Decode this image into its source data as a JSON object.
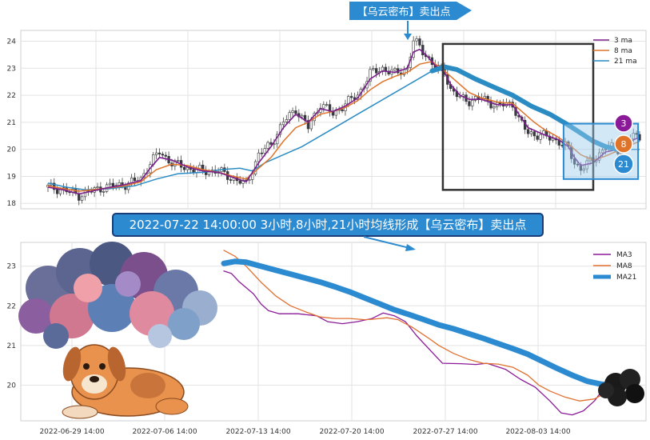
{
  "chart_data": [
    {
      "type": "candlestick",
      "title": "",
      "ylim": [
        17.8,
        24.4
      ],
      "yticks": [
        18,
        19,
        20,
        21,
        22,
        23,
        24
      ],
      "grid": true,
      "legend_position": "top-right",
      "legend": [
        {
          "name": "3 ma",
          "color": "#7b1f8c"
        },
        {
          "name": "8 ma",
          "color": "#e0732a"
        },
        {
          "name": "21 ma",
          "color": "#2b8cc4"
        }
      ],
      "close_path": [
        [
          0,
          18.6
        ],
        [
          5,
          18.5
        ],
        [
          10,
          18.3
        ],
        [
          18,
          18.6
        ],
        [
          25,
          18.7
        ],
        [
          30,
          18.9
        ],
        [
          33,
          19.5
        ],
        [
          36,
          19.9
        ],
        [
          40,
          19.5
        ],
        [
          45,
          19.3
        ],
        [
          50,
          19.2
        ],
        [
          55,
          19.2
        ],
        [
          60,
          18.9
        ],
        [
          64,
          18.7
        ],
        [
          68,
          19.8
        ],
        [
          72,
          20.2
        ],
        [
          76,
          21.0
        ],
        [
          80,
          21.5
        ],
        [
          84,
          20.8
        ],
        [
          88,
          21.7
        ],
        [
          92,
          21.3
        ],
        [
          96,
          21.7
        ],
        [
          100,
          22.0
        ],
        [
          104,
          22.8
        ],
        [
          108,
          23.0
        ],
        [
          112,
          22.8
        ],
        [
          116,
          23.0
        ],
        [
          118,
          24.0
        ],
        [
          120,
          23.8
        ],
        [
          122,
          23.5
        ],
        [
          125,
          23.0
        ],
        [
          128,
          22.9
        ],
        [
          130,
          22.2
        ],
        [
          133,
          21.9
        ],
        [
          136,
          21.8
        ],
        [
          140,
          21.9
        ],
        [
          145,
          21.6
        ],
        [
          150,
          21.7
        ],
        [
          152,
          21.1
        ],
        [
          155,
          20.6
        ],
        [
          160,
          20.5
        ],
        [
          165,
          20.3
        ],
        [
          168,
          20.0
        ],
        [
          170,
          19.5
        ],
        [
          172,
          19.3
        ],
        [
          176,
          19.6
        ],
        [
          180,
          20.1
        ],
        [
          184,
          20.0
        ],
        [
          188,
          20.4
        ],
        [
          191,
          20.5
        ]
      ],
      "ma3_path": [
        [
          0,
          18.6
        ],
        [
          5,
          18.5
        ],
        [
          10,
          18.35
        ],
        [
          18,
          18.55
        ],
        [
          25,
          18.7
        ],
        [
          30,
          18.85
        ],
        [
          33,
          19.3
        ],
        [
          36,
          19.7
        ],
        [
          40,
          19.6
        ],
        [
          45,
          19.35
        ],
        [
          50,
          19.2
        ],
        [
          55,
          19.15
        ],
        [
          60,
          18.95
        ],
        [
          64,
          18.8
        ],
        [
          68,
          19.5
        ],
        [
          72,
          20.1
        ],
        [
          76,
          20.8
        ],
        [
          80,
          21.3
        ],
        [
          84,
          21.0
        ],
        [
          88,
          21.5
        ],
        [
          92,
          21.4
        ],
        [
          96,
          21.6
        ],
        [
          100,
          21.9
        ],
        [
          104,
          22.6
        ],
        [
          108,
          22.9
        ],
        [
          112,
          22.85
        ],
        [
          116,
          23.0
        ],
        [
          118,
          23.6
        ],
        [
          120,
          23.7
        ],
        [
          122,
          23.5
        ],
        [
          125,
          23.1
        ],
        [
          128,
          22.85
        ],
        [
          130,
          22.4
        ],
        [
          133,
          22.0
        ],
        [
          136,
          21.85
        ],
        [
          140,
          21.85
        ],
        [
          145,
          21.65
        ],
        [
          150,
          21.65
        ],
        [
          152,
          21.3
        ],
        [
          155,
          20.8
        ],
        [
          160,
          20.55
        ],
        [
          165,
          20.35
        ],
        [
          168,
          20.1
        ],
        [
          170,
          19.7
        ],
        [
          172,
          19.4
        ],
        [
          176,
          19.5
        ],
        [
          180,
          19.9
        ],
        [
          184,
          20.0
        ],
        [
          188,
          20.3
        ],
        [
          191,
          20.45
        ]
      ],
      "ma8_path": [
        [
          0,
          18.65
        ],
        [
          5,
          18.55
        ],
        [
          10,
          18.45
        ],
        [
          18,
          18.55
        ],
        [
          25,
          18.65
        ],
        [
          30,
          18.8
        ],
        [
          35,
          19.25
        ],
        [
          40,
          19.45
        ],
        [
          45,
          19.4
        ],
        [
          50,
          19.25
        ],
        [
          55,
          19.15
        ],
        [
          60,
          19.0
        ],
        [
          64,
          18.9
        ],
        [
          68,
          19.3
        ],
        [
          72,
          19.7
        ],
        [
          76,
          20.3
        ],
        [
          80,
          20.8
        ],
        [
          84,
          21.0
        ],
        [
          88,
          21.3
        ],
        [
          92,
          21.4
        ],
        [
          96,
          21.55
        ],
        [
          100,
          21.8
        ],
        [
          104,
          22.2
        ],
        [
          108,
          22.5
        ],
        [
          112,
          22.7
        ],
        [
          116,
          22.85
        ],
        [
          120,
          23.15
        ],
        [
          124,
          23.25
        ],
        [
          128,
          22.9
        ],
        [
          132,
          22.5
        ],
        [
          136,
          22.1
        ],
        [
          140,
          21.9
        ],
        [
          145,
          21.75
        ],
        [
          150,
          21.7
        ],
        [
          153,
          21.4
        ],
        [
          157,
          21.0
        ],
        [
          160,
          20.75
        ],
        [
          164,
          20.5
        ],
        [
          168,
          20.2
        ],
        [
          172,
          19.8
        ],
        [
          176,
          19.6
        ],
        [
          180,
          19.75
        ],
        [
          184,
          19.95
        ],
        [
          188,
          20.15
        ],
        [
          191,
          20.3
        ]
      ],
      "ma21_path": [
        [
          0,
          18.75
        ],
        [
          6,
          18.6
        ],
        [
          12,
          18.5
        ],
        [
          20,
          18.55
        ],
        [
          28,
          18.65
        ],
        [
          35,
          18.9
        ],
        [
          42,
          19.1
        ],
        [
          50,
          19.15
        ],
        [
          56,
          19.25
        ],
        [
          62,
          19.3
        ],
        [
          66,
          19.2
        ],
        [
          70,
          19.5
        ],
        [
          76,
          19.8
        ],
        [
          82,
          20.1
        ],
        [
          88,
          20.5
        ],
        [
          94,
          20.9
        ],
        [
          100,
          21.3
        ],
        [
          106,
          21.7
        ],
        [
          112,
          22.1
        ],
        [
          118,
          22.5
        ],
        [
          124,
          22.9
        ],
        [
          128,
          23.05
        ],
        [
          132,
          22.95
        ],
        [
          138,
          22.6
        ],
        [
          144,
          22.3
        ],
        [
          150,
          22.0
        ],
        [
          156,
          21.6
        ],
        [
          162,
          21.3
        ],
        [
          168,
          20.9
        ],
        [
          172,
          20.6
        ],
        [
          176,
          20.3
        ],
        [
          180,
          20.1
        ],
        [
          184,
          20.0
        ],
        [
          188,
          20.0
        ],
        [
          191,
          20.0
        ]
      ],
      "sell_box": {
        "x": [
          128,
          191
        ],
        "y": [
          18.5,
          23.9
        ]
      },
      "sell_zoom_box": {
        "x": [
          168,
          190
        ],
        "y": [
          18.9,
          20.95
        ]
      },
      "callout_top": "【乌云密布】卖出点",
      "ma_badges": [
        "3",
        "8",
        "21"
      ]
    },
    {
      "type": "line",
      "title": "",
      "ylim": [
        19.1,
        23.6
      ],
      "yticks": [
        20,
        21,
        22,
        23
      ],
      "x_ticks": [
        "2022-06-29 14:00",
        "2022-07-06 14:00",
        "2022-07-13 14:00",
        "2022-07-20 14:00",
        "2022-07-27 14:00",
        "2022-08-03 14:00"
      ],
      "legend_position": "top-right",
      "grid": true,
      "callout": "2022-07-22 14:00:00 3小时,8小时,21小时均线形成【乌云密布】卖出点",
      "series": [
        {
          "name": "MA3",
          "color": "#8b1a99",
          "points": [
            [
              0,
              22.88
            ],
            [
              2,
              22.82
            ],
            [
              4,
              22.62
            ],
            [
              8,
              22.3
            ],
            [
              10,
              22.05
            ],
            [
              12,
              21.88
            ],
            [
              15,
              21.8
            ],
            [
              20,
              21.8
            ],
            [
              25,
              21.75
            ],
            [
              28,
              21.6
            ],
            [
              32,
              21.55
            ],
            [
              36,
              21.6
            ],
            [
              40,
              21.68
            ],
            [
              43,
              21.82
            ],
            [
              46,
              21.75
            ],
            [
              49,
              21.6
            ],
            [
              52,
              21.25
            ],
            [
              56,
              20.85
            ],
            [
              59,
              20.55
            ],
            [
              64,
              20.54
            ],
            [
              68,
              20.52
            ],
            [
              71,
              20.55
            ],
            [
              76,
              20.4
            ],
            [
              80,
              20.15
            ],
            [
              84,
              19.95
            ],
            [
              88,
              19.6
            ],
            [
              91,
              19.3
            ],
            [
              94,
              19.25
            ],
            [
              97,
              19.35
            ],
            [
              100,
              19.6
            ],
            [
              102,
              19.85
            ],
            [
              104,
              20.0
            ]
          ]
        },
        {
          "name": "MA8",
          "color": "#e07030",
          "points": [
            [
              0,
              23.4
            ],
            [
              3,
              23.25
            ],
            [
              6,
              23.0
            ],
            [
              10,
              22.6
            ],
            [
              14,
              22.25
            ],
            [
              18,
              22.0
            ],
            [
              22,
              21.85
            ],
            [
              26,
              21.72
            ],
            [
              30,
              21.68
            ],
            [
              34,
              21.68
            ],
            [
              38,
              21.65
            ],
            [
              40,
              21.66
            ],
            [
              44,
              21.7
            ],
            [
              47,
              21.65
            ],
            [
              51,
              21.45
            ],
            [
              55,
              21.2
            ],
            [
              58,
              21.0
            ],
            [
              62,
              20.8
            ],
            [
              66,
              20.65
            ],
            [
              70,
              20.55
            ],
            [
              74,
              20.53
            ],
            [
              78,
              20.45
            ],
            [
              82,
              20.25
            ],
            [
              85,
              20.0
            ],
            [
              88,
              19.85
            ],
            [
              92,
              19.7
            ],
            [
              96,
              19.6
            ],
            [
              100,
              19.65
            ],
            [
              104,
              19.85
            ]
          ]
        },
        {
          "name": "MA21",
          "color": "#2b8ad0",
          "points": [
            [
              0,
              23.07
            ],
            [
              3,
              23.12
            ],
            [
              6,
              23.1
            ],
            [
              10,
              23.0
            ],
            [
              14,
              22.9
            ],
            [
              18,
              22.8
            ],
            [
              22,
              22.7
            ],
            [
              26,
              22.6
            ],
            [
              30,
              22.48
            ],
            [
              34,
              22.35
            ],
            [
              38,
              22.2
            ],
            [
              42,
              22.05
            ],
            [
              46,
              21.9
            ],
            [
              50,
              21.78
            ],
            [
              54,
              21.65
            ],
            [
              58,
              21.52
            ],
            [
              62,
              21.42
            ],
            [
              66,
              21.3
            ],
            [
              70,
              21.18
            ],
            [
              74,
              21.05
            ],
            [
              78,
              20.92
            ],
            [
              82,
              20.78
            ],
            [
              86,
              20.6
            ],
            [
              90,
              20.42
            ],
            [
              94,
              20.25
            ],
            [
              98,
              20.1
            ],
            [
              102,
              20.02
            ],
            [
              104,
              20.0
            ]
          ]
        }
      ]
    }
  ]
}
